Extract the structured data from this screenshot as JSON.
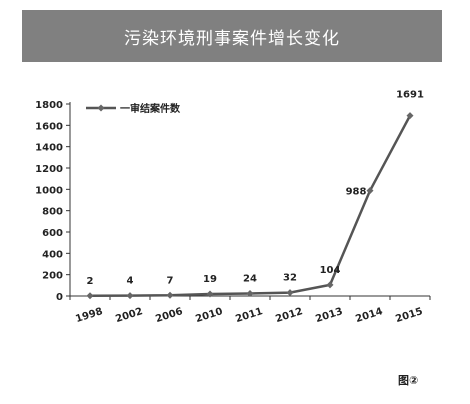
{
  "banner": {
    "title": "污染环境刑事案件增长变化"
  },
  "figure_label": "图②",
  "chart_data": {
    "type": "line",
    "title": "污染环境刑事案件增长变化",
    "categories": [
      "1998",
      "2002",
      "2006",
      "2010",
      "2011",
      "2012",
      "2013",
      "2014",
      "2015"
    ],
    "series": [
      {
        "name": "一审结案件数",
        "values": [
          2,
          4,
          7,
          19,
          24,
          32,
          104,
          988,
          1691
        ]
      }
    ],
    "data_labels": [
      "2",
      "4",
      "7",
      "19",
      "24",
      "32",
      "104",
      "988",
      "1691"
    ],
    "ylim": [
      0,
      1800
    ],
    "yticks": [
      0,
      200,
      400,
      600,
      800,
      1000,
      1200,
      1400,
      1600,
      1800
    ],
    "xlabel": "",
    "ylabel": "",
    "grid": false,
    "legend": "top-left",
    "colors": {
      "line": "#555555",
      "marker": "#666666",
      "axis": "#333333",
      "banner": "#808080"
    }
  }
}
